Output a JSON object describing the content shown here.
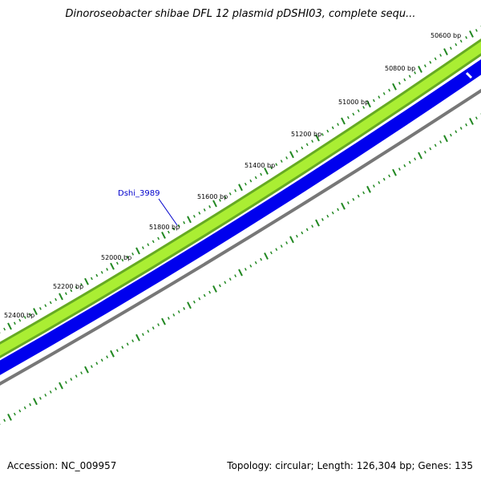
{
  "title": "Dinoroseobacter shibae DFL 12 plasmid pDSHI03, complete sequ...",
  "accession": "Accession: NC_009957",
  "summary": "Topology: circular; Length: 126,304 bp; Genes: 135",
  "colors": {
    "forward_track": "#99dd33",
    "forward_track_edge": "#66aa22",
    "reverse_track": "#0000ee",
    "backbone": "#777777",
    "ticks": "#228822",
    "gene_label": "#0000cc"
  },
  "gene_label": "Dshi_3989",
  "tick_labels": [
    "50600 bp",
    "50800 bp",
    "51000 bp",
    "51200 bp",
    "51400 bp",
    "51600 bp",
    "51800 bp",
    "52000 bp",
    "52200 bp",
    "52400 bp"
  ]
}
